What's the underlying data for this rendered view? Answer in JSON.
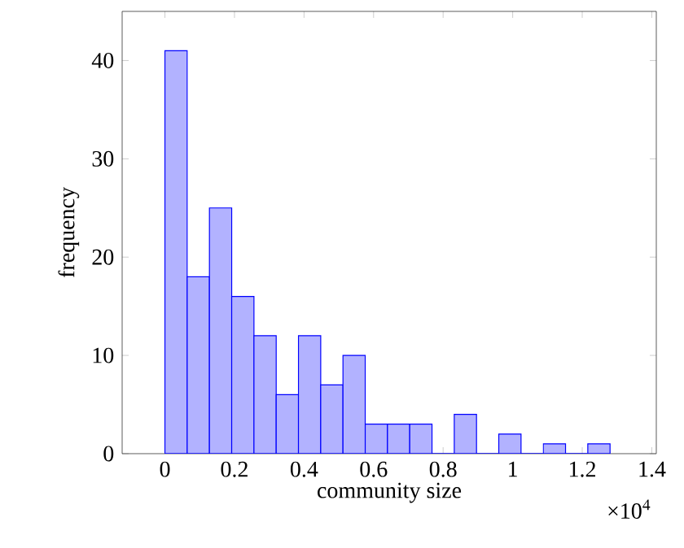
{
  "chart_data": {
    "type": "histogram",
    "xlabel": "community size",
    "ylabel": "frequency",
    "bins": [
      0,
      0.064,
      0.128,
      0.192,
      0.256,
      0.32,
      0.384,
      0.448,
      0.512,
      0.576,
      0.64,
      0.704,
      0.768,
      0.832,
      0.896,
      0.96,
      1.024,
      1.088,
      1.152,
      1.216,
      1.28
    ],
    "values": [
      41,
      18,
      25,
      16,
      12,
      6,
      12,
      7,
      10,
      3,
      3,
      3,
      0,
      4,
      0,
      2,
      0,
      1,
      0,
      1
    ],
    "color": "#b2b2ff",
    "xlim": [
      -0.123,
      1.413
    ],
    "ylim": [
      0,
      45
    ],
    "xticks": [
      0,
      0.2,
      0.4,
      0.6,
      0.8,
      1,
      1.2,
      1.4
    ],
    "yticks": [
      0,
      10,
      20,
      30,
      40
    ],
    "annotations": [
      "×10$^{4}$"
    ]
  }
}
